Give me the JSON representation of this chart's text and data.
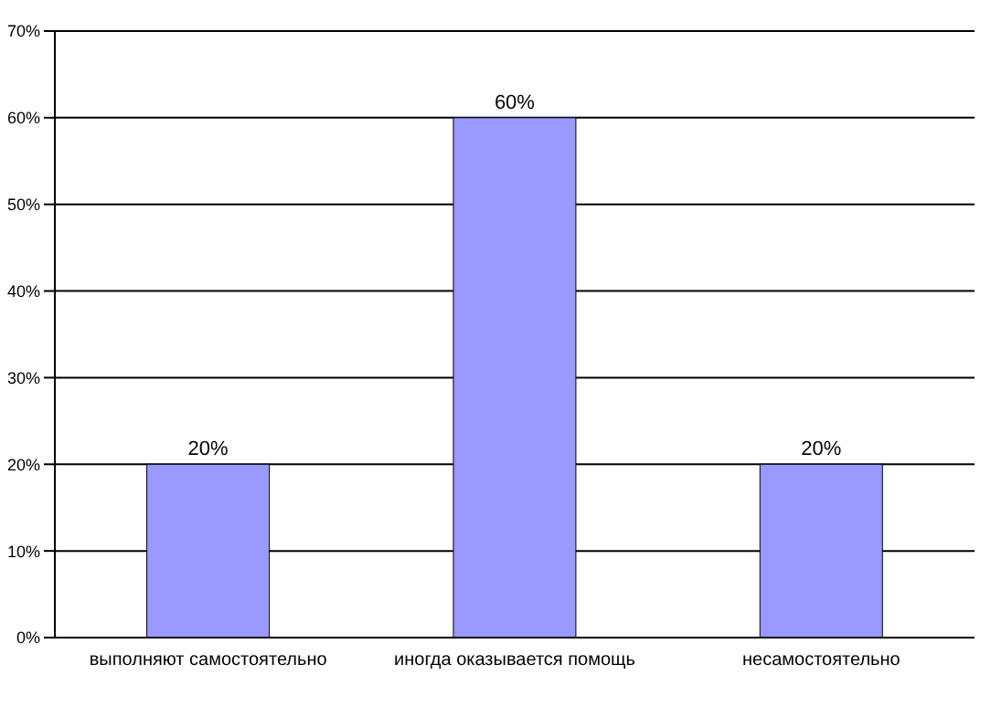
{
  "chart_data": {
    "type": "bar",
    "categories": [
      "выполняют самостоятельно",
      "иногда оказывается помощь",
      "несамостоятельно"
    ],
    "values": [
      20,
      60,
      20
    ],
    "color": "#9999ff",
    "value_labels": [
      "20%",
      "60%",
      "20%"
    ],
    "ylim": [
      0,
      70
    ],
    "yticks": [
      {
        "value": 0,
        "label": "0%"
      },
      {
        "value": 10,
        "label": "10%"
      },
      {
        "value": 20,
        "label": "20%"
      },
      {
        "value": 30,
        "label": "30%"
      },
      {
        "value": 40,
        "label": "40%"
      },
      {
        "value": 50,
        "label": "50%"
      },
      {
        "value": 60,
        "label": "60%"
      },
      {
        "value": 70,
        "label": "70%"
      }
    ],
    "grid": "y"
  }
}
